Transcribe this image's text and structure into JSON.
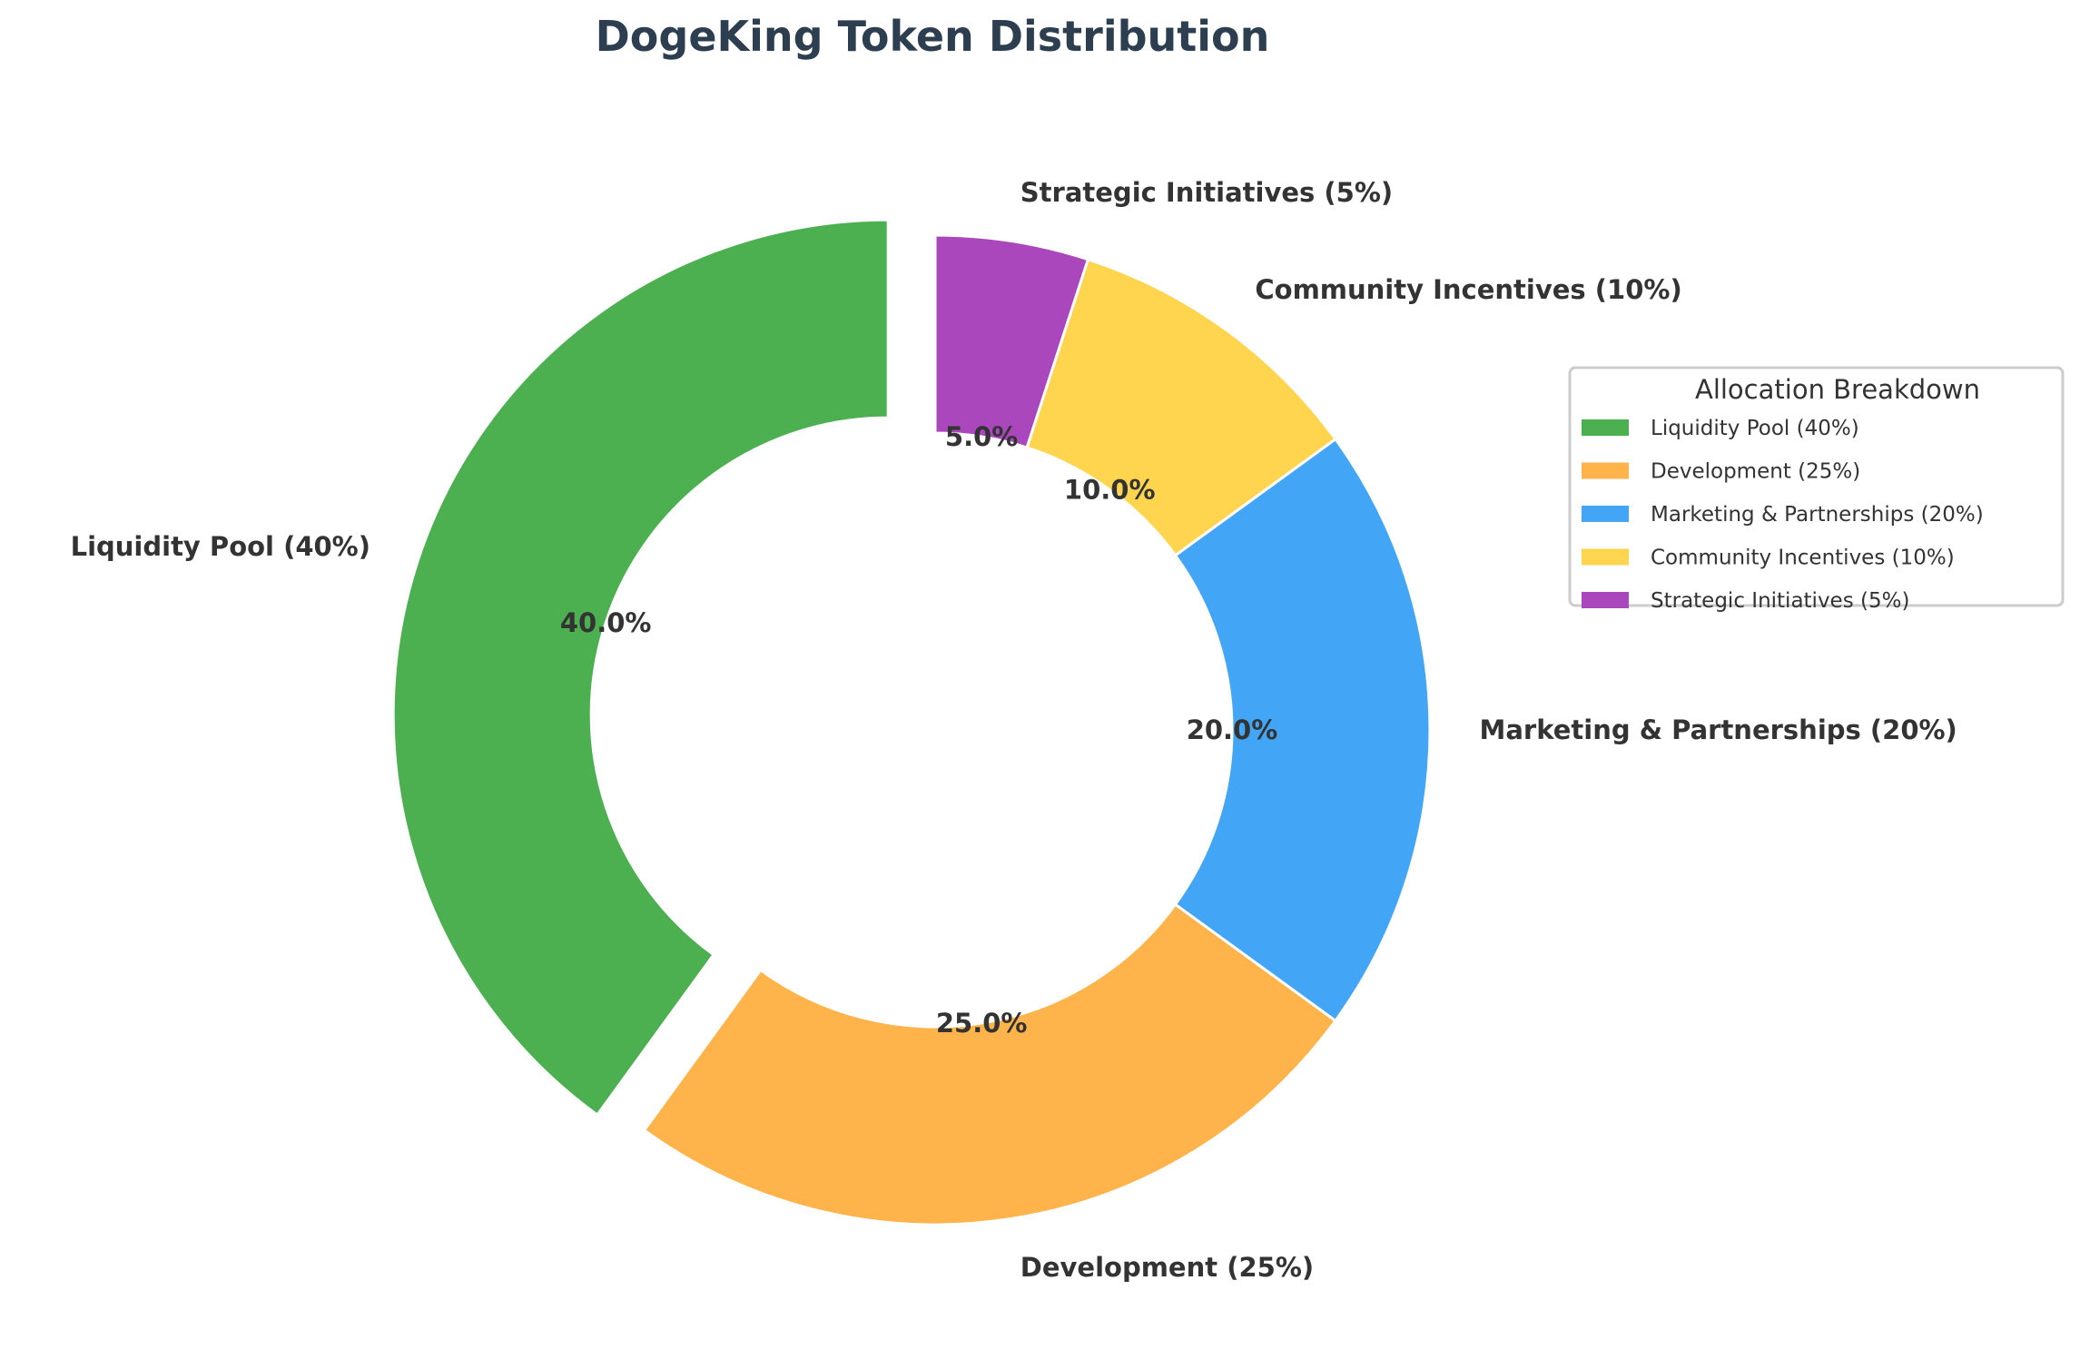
{
  "chart_data": {
    "type": "pie",
    "donut": true,
    "title": "DogeKing Token Distribution",
    "categories": [
      "Liquidity Pool (40%)",
      "Development (25%)",
      "Marketing & Partnerships (20%)",
      "Community Incentives (10%)",
      "Strategic Initiatives (5%)"
    ],
    "values": [
      40,
      25,
      20,
      10,
      5
    ],
    "pct_labels": [
      "40.0%",
      "25.0%",
      "20.0%",
      "10.0%",
      "5.0%"
    ],
    "colors": [
      "#4caf50",
      "#ffb34b",
      "#42a5f5",
      "#ffd54f",
      "#ab47bc"
    ],
    "exploded": [
      "Liquidity Pool (40%)"
    ],
    "start_angle": 90,
    "direction": "counterclockwise",
    "legend": {
      "title": "Allocation Breakdown",
      "placement": "right",
      "entries": [
        "Liquidity Pool (40%)",
        "Development (25%)",
        "Marketing & Partnerships (20%)",
        "Community Incentives (10%)",
        "Strategic Initiatives (5%)"
      ]
    }
  }
}
